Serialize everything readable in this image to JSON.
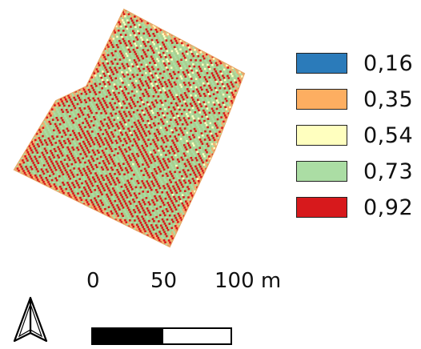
{
  "legend": {
    "items": [
      {
        "label": "0,16",
        "color": "#2b7bba"
      },
      {
        "label": "0,35",
        "color": "#fdae61"
      },
      {
        "label": "0,54",
        "color": "#ffffbf"
      },
      {
        "label": "0,73",
        "color": "#abdda4"
      },
      {
        "label": "0,92",
        "color": "#d7191c"
      }
    ]
  },
  "scale": {
    "labels": [
      "0",
      "50",
      "100 m"
    ],
    "segment_colors": [
      "#000000",
      "#ffffff"
    ]
  },
  "north_arrow": {
    "icon": "north-arrow-icon"
  },
  "map": {
    "colors": {
      "edge": "#f0b070",
      "dominant": "#d7191c",
      "secondary": "#abdda4",
      "tertiary": "#ffffbf"
    }
  }
}
